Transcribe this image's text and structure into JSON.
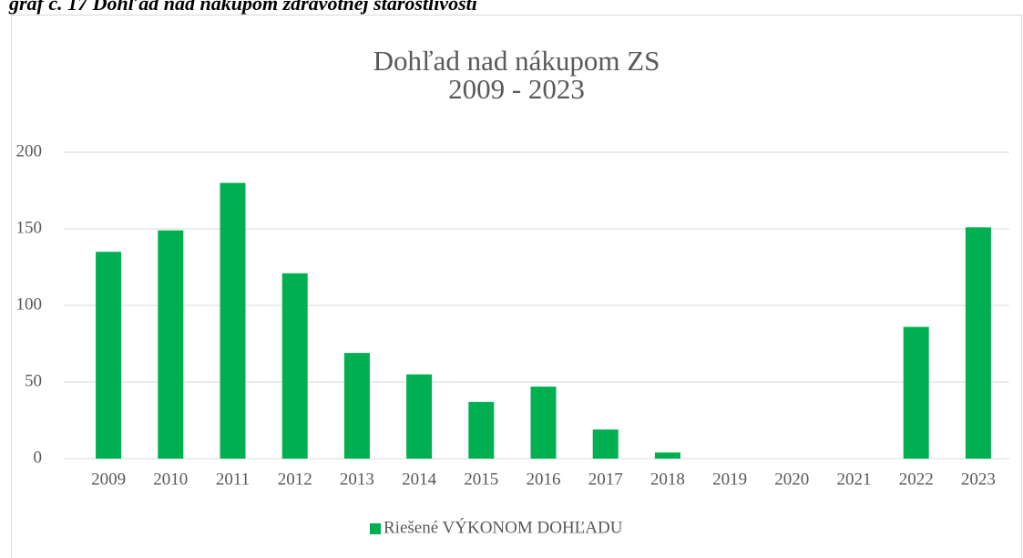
{
  "caption": "graf č. 17 Dohľad nad nákupom zdravotnej starostlivosti",
  "chart_data": {
    "type": "bar",
    "title": "Dohľad nad nákupom ZS",
    "subtitle": "2009 - 2023",
    "categories": [
      "2009",
      "2010",
      "2011",
      "2012",
      "2013",
      "2014",
      "2015",
      "2016",
      "2017",
      "2018",
      "2019",
      "2020",
      "2021",
      "2022",
      "2023"
    ],
    "series": [
      {
        "name": "Riešené VÝKONOM DOHĽADU",
        "color": "#00b050",
        "values": [
          135,
          149,
          180,
          121,
          69,
          55,
          37,
          47,
          19,
          4,
          0,
          0,
          0,
          86,
          151
        ]
      }
    ],
    "ylim": [
      0,
      200
    ],
    "yticks": [
      0,
      50,
      100,
      150,
      200
    ],
    "grid": true,
    "legend": "bottom"
  }
}
